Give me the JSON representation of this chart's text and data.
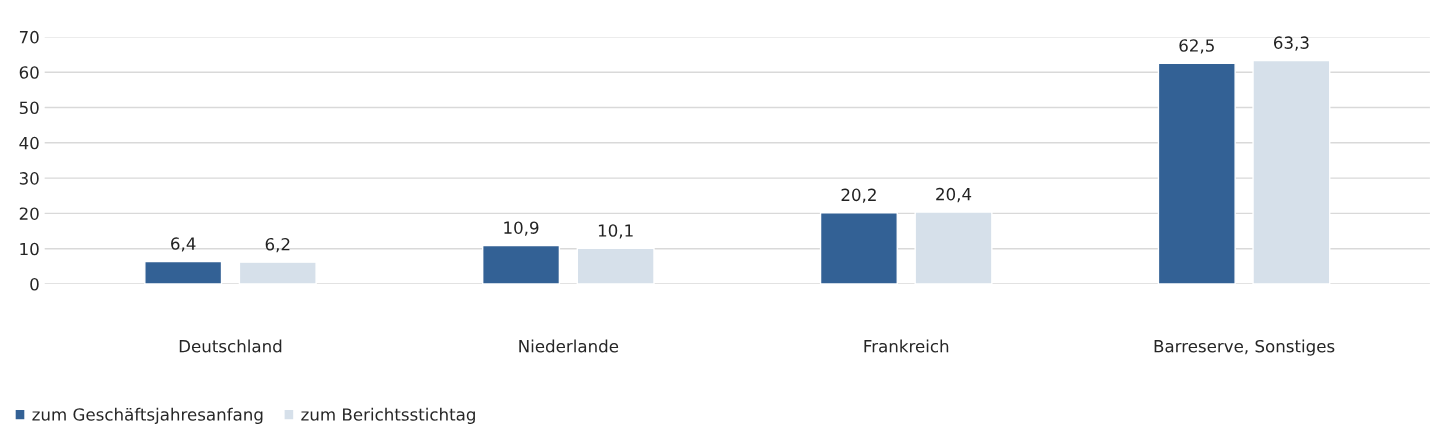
{
  "chart_data": {
    "type": "bar",
    "categories": [
      "Deutschland",
      "Niederlande",
      "Frankreich",
      "Barreserve, Sonstiges"
    ],
    "series": [
      {
        "name": "zum Geschäftsjahresanfang",
        "color": "#336195",
        "values": [
          6.4,
          10.9,
          20.2,
          62.5
        ],
        "value_labels": [
          "6,4",
          "10,9",
          "20,2",
          "62,5"
        ]
      },
      {
        "name": "zum Berichtsstichtag",
        "color": "#d6e0ea",
        "values": [
          6.2,
          10.1,
          20.4,
          63.3
        ],
        "value_labels": [
          "6,2",
          "10,1",
          "20,4",
          "63,3"
        ]
      }
    ],
    "ylim": [
      0,
      70
    ],
    "yticks": [
      0,
      10,
      20,
      30,
      40,
      50,
      60,
      70
    ],
    "grid": "y",
    "legend": "bottom left"
  }
}
